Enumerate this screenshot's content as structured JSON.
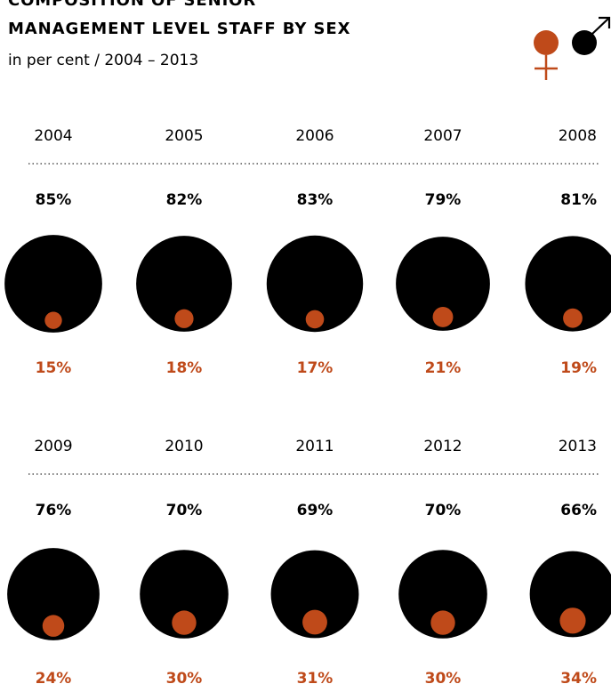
{
  "header": {
    "title_line1": "COMPOSITION OF SENIOR",
    "title_line2": "MANAGEMENT LEVEL STAFF BY SEX",
    "subtitle": "in per cent / 2004 – 2013"
  },
  "legend": {
    "female_symbol": "female-symbol-icon",
    "male_symbol": "male-symbol-icon"
  },
  "colors": {
    "male": "#000000",
    "female": "#bf4a1a",
    "divider": "#555555"
  },
  "chart_data": {
    "type": "bubble",
    "title": "COMPOSITION OF SENIOR MANAGEMENT LEVEL STAFF BY SEX",
    "subtitle": "in per cent / 2004 – 2013",
    "categories": [
      "2004",
      "2005",
      "2006",
      "2007",
      "2008",
      "2009",
      "2010",
      "2011",
      "2012",
      "2013"
    ],
    "series": [
      {
        "name": "male",
        "values": [
          85,
          82,
          83,
          79,
          81,
          76,
          70,
          69,
          70,
          66
        ],
        "labels": [
          "85%",
          "82%",
          "83%",
          "79%",
          "81%",
          "76%",
          "70%",
          "69%",
          "70%",
          "66%"
        ]
      },
      {
        "name": "female",
        "values": [
          15,
          18,
          17,
          21,
          19,
          24,
          30,
          31,
          30,
          34
        ],
        "labels": [
          "15%",
          "18%",
          "17%",
          "21%",
          "19%",
          "24%",
          "30%",
          "31%",
          "30%",
          "34%"
        ]
      }
    ]
  }
}
